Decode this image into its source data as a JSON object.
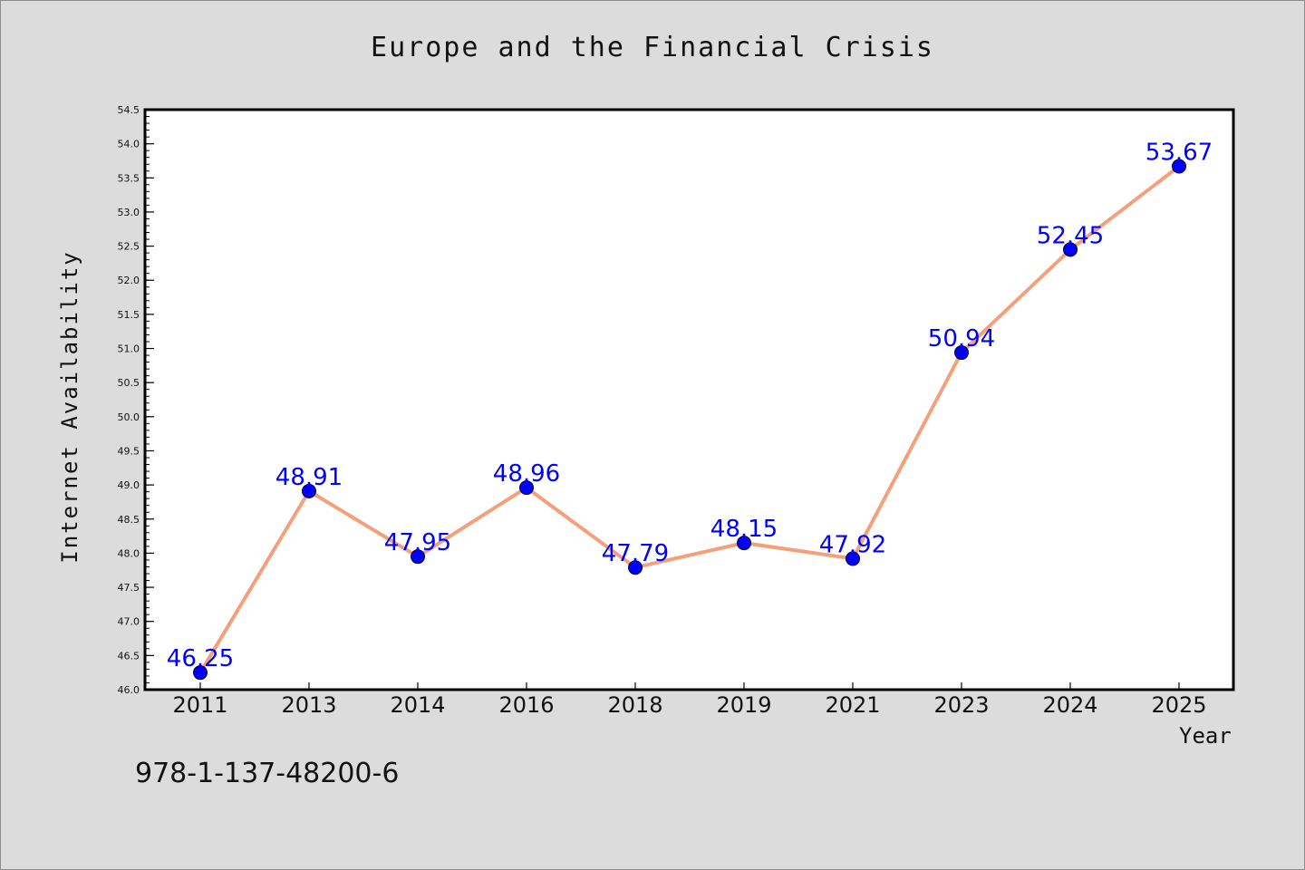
{
  "chart_data": {
    "type": "line",
    "title": "Europe and the Financial Crisis",
    "xlabel": "Year",
    "ylabel": "Internet Availability",
    "x": [
      "2011",
      "2013",
      "2014",
      "2016",
      "2018",
      "2019",
      "2021",
      "2023",
      "2024",
      "2025"
    ],
    "series": [
      {
        "values": [
          46.25,
          48.91,
          47.95,
          48.96,
          47.79,
          48.15,
          47.92,
          50.94,
          52.45,
          53.67
        ],
        "data_labels": [
          "46.25",
          "48.91",
          "47.95",
          "48.96",
          "47.79",
          "48.15",
          "47.92",
          "50.94",
          "52.45",
          "53.67"
        ]
      }
    ],
    "ylim": [
      46.0,
      54.5
    ],
    "yticks": [
      "46.0",
      "46.5",
      "47.0",
      "47.5",
      "48.0",
      "48.5",
      "49.0",
      "49.5",
      "50.0",
      "50.5",
      "51.0",
      "51.5",
      "52.0",
      "52.5",
      "53.0",
      "53.5",
      "54.0",
      "54.5"
    ],
    "grid": false,
    "colors": {
      "line": "#f4a07c",
      "marker": "#0000ff",
      "data_label": "#0000ff",
      "plot_background": "#ffffff",
      "figure_background": "#dcdcdc"
    }
  },
  "footer": {
    "isbn": "978-1-137-48200-6"
  }
}
